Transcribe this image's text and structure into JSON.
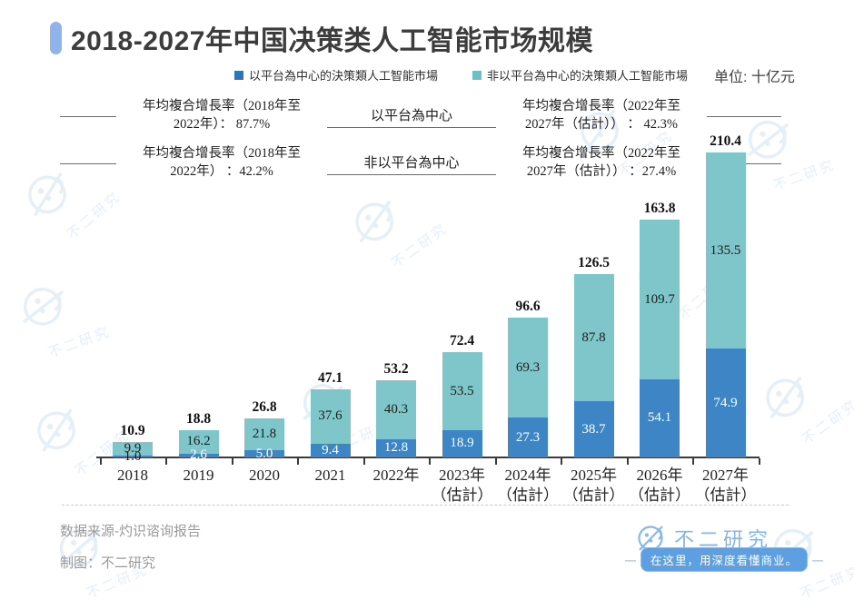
{
  "title": "2018-2027年中国决策类人工智能市场规模",
  "unit_label": "单位: 十亿元",
  "legend": [
    {
      "label": "以平台為中心的決策類人工智能市場",
      "color": "#2f74b5"
    },
    {
      "label": "非以平台為中心的決策類人工智能市場",
      "color": "#6fbfc6"
    }
  ],
  "annotations": {
    "rows": [
      {
        "left_line1": "年均複合增長率（2018年至",
        "left_line2": "2022年）： 87.7%",
        "center": "以平台為中心",
        "right_line1": "年均複合增長率（2022年至",
        "right_line2": "2027年（估計）） ： 42.3%"
      },
      {
        "left_line1": "年均複合增長率（2018年至",
        "left_line2": "2022年） ：42.2%",
        "center": "非以平台為中心",
        "right_line1": "年均複合增長率（2022年至",
        "right_line2": "2027年（估計）） ：27.4%"
      }
    ]
  },
  "chart_data": {
    "type": "bar",
    "stacked": true,
    "title": "2018-2027年中国决策类人工智能市场规模",
    "ylabel": "十亿元",
    "ylim": [
      0,
      220
    ],
    "grid": false,
    "legend_position": "top",
    "categories": [
      "2018",
      "2019",
      "2020",
      "2021",
      "2022年",
      "2023年（估計）",
      "2024年（估計）",
      "2025年（估計）",
      "2026年（估計）",
      "2027年（估計）"
    ],
    "tick_lines": [
      [
        "2018"
      ],
      [
        "2019"
      ],
      [
        "2020"
      ],
      [
        "2021"
      ],
      [
        "2022年"
      ],
      [
        "2023年",
        "（估計）"
      ],
      [
        "2024年",
        "（估計）"
      ],
      [
        "2025年",
        "（估計）"
      ],
      [
        "2026年",
        "（估計）"
      ],
      [
        "2027年",
        "（估計）"
      ]
    ],
    "series": [
      {
        "name": "以平台為中心的決策類人工智能市場",
        "color": "#3d85c4",
        "values": [
          1.0,
          2.6,
          5.0,
          9.4,
          12.8,
          18.9,
          27.3,
          38.7,
          54.1,
          74.9
        ]
      },
      {
        "name": "非以平台為中心的決策類人工智能市場",
        "color": "#7fc6cb",
        "values": [
          9.9,
          16.2,
          21.8,
          37.6,
          40.3,
          53.5,
          69.3,
          87.8,
          109.7,
          135.5
        ]
      }
    ],
    "totals": [
      10.9,
      18.8,
      26.8,
      47.1,
      53.2,
      72.4,
      96.6,
      126.5,
      163.8,
      210.4
    ]
  },
  "footer": {
    "source": "数据来源-灼识谘询报告",
    "credit": "制图：不二研究",
    "logo_text": "不二研究",
    "ribbon": "在这里，用深度看懂商业。"
  },
  "watermark": {
    "text": "不二研究"
  }
}
